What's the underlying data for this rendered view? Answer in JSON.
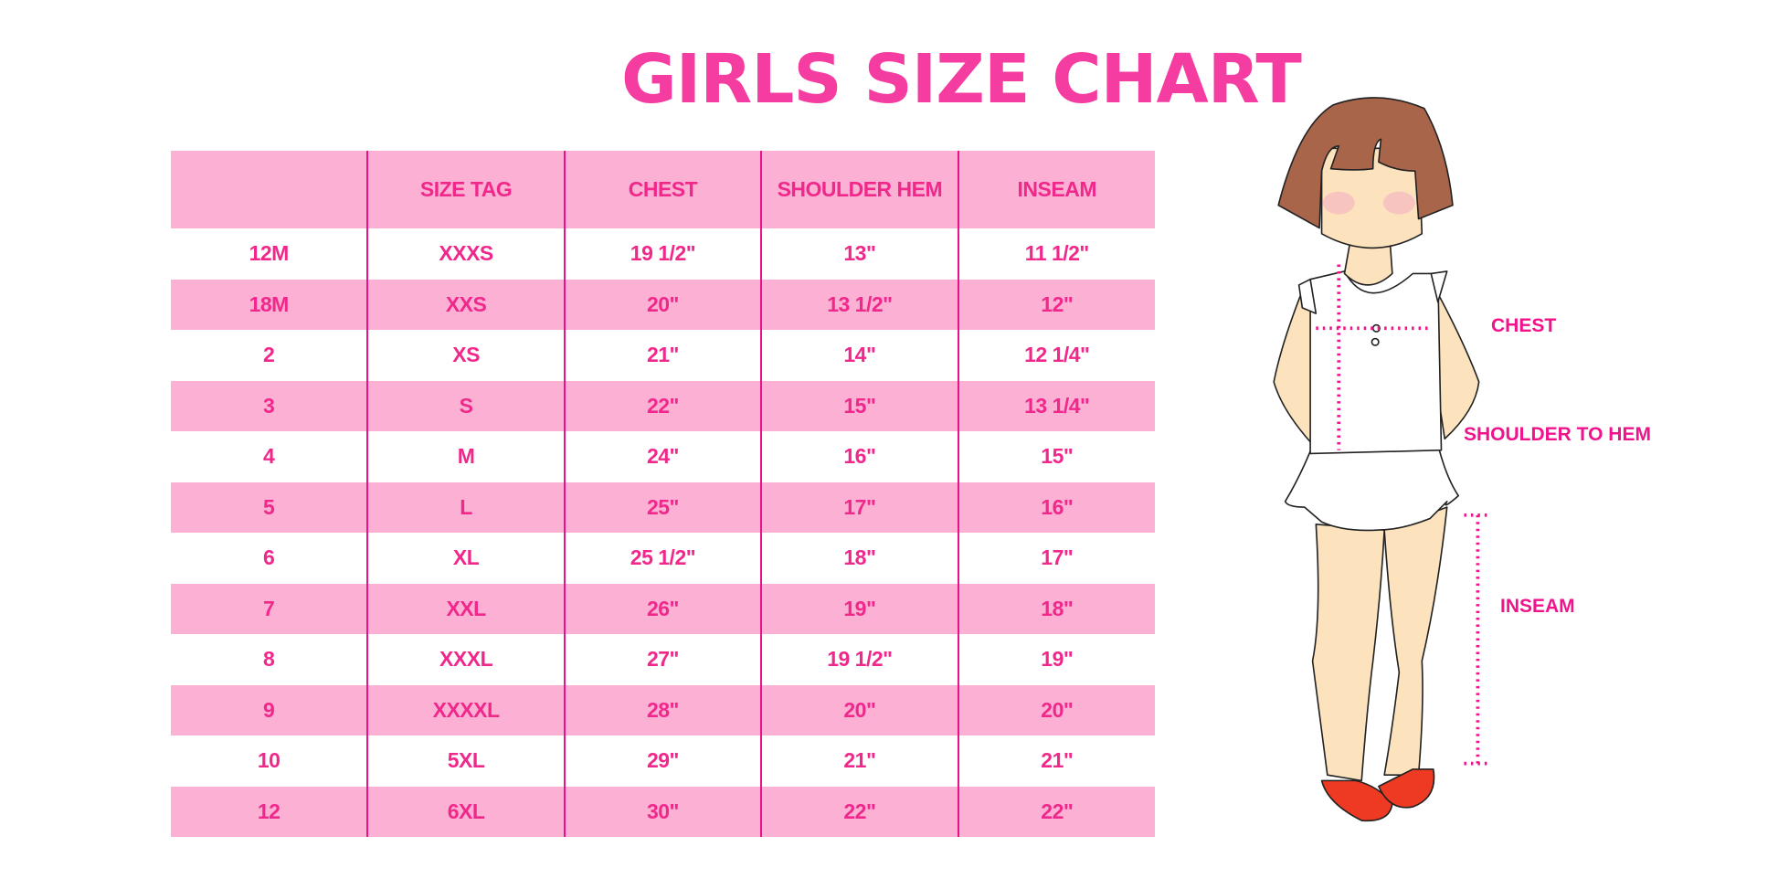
{
  "title": "GIRLS SIZE CHART",
  "colors": {
    "accent": "#F53CA0",
    "text": "#F0288C",
    "stripe": "#FBB0D4",
    "divider": "#E8128A"
  },
  "table": {
    "headers": [
      "",
      "SIZE TAG",
      "CHEST",
      "SHOULDER HEM",
      "INSEAM"
    ],
    "rows": [
      [
        "12M",
        "XXXS",
        "19 1/2\"",
        "13\"",
        "11 1/2\""
      ],
      [
        "18M",
        "XXS",
        "20\"",
        "13 1/2\"",
        "12\""
      ],
      [
        "2",
        "XS",
        "21\"",
        "14\"",
        "12 1/4\""
      ],
      [
        "3",
        "S",
        "22\"",
        "15\"",
        "13 1/4\""
      ],
      [
        "4",
        "M",
        "24\"",
        "16\"",
        "15\""
      ],
      [
        "5",
        "L",
        "25\"",
        "17\"",
        "16\""
      ],
      [
        "6",
        "XL",
        "25 1/2\"",
        "18\"",
        "17\""
      ],
      [
        "7",
        "XXL",
        "26\"",
        "19\"",
        "18\""
      ],
      [
        "8",
        "XXXL",
        "27\"",
        "19 1/2\"",
        "19\""
      ],
      [
        "9",
        "XXXXL",
        "28\"",
        "20\"",
        "20\""
      ],
      [
        "10",
        "5XL",
        "29\"",
        "21\"",
        "21\""
      ],
      [
        "12",
        "6XL",
        "30\"",
        "22\"",
        "22\""
      ]
    ]
  },
  "figure": {
    "labels": {
      "chest": "CHEST",
      "shoulder": "SHOULDER TO HEM",
      "inseam": "INSEAM"
    }
  }
}
